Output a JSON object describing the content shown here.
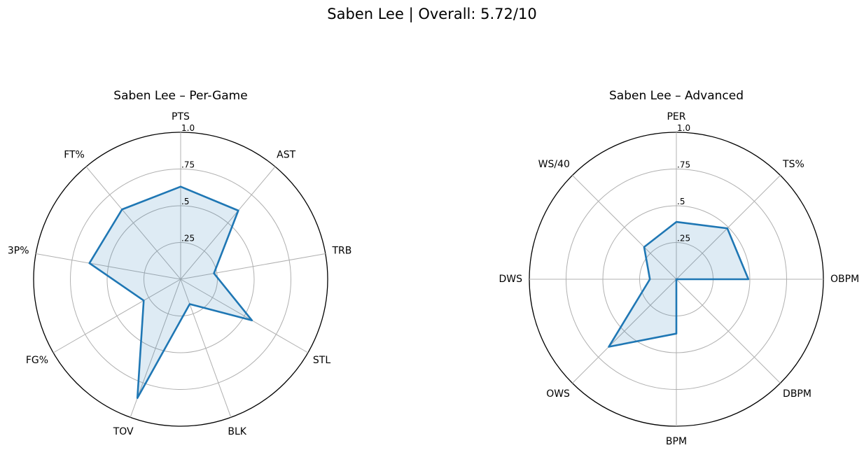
{
  "figure": {
    "suptitle": "Saben Lee | Overall: 5.72/10"
  },
  "colors": {
    "series_line": "#1f77b4",
    "series_fill": "#1f77b4",
    "grid": "#b0b0b0",
    "outer_ring": "#000000"
  },
  "chart_data": [
    {
      "type": "radar",
      "title": "Saben Lee – Per-Game",
      "categories": [
        "PTS",
        "AST",
        "TRB",
        "STL",
        "BLK",
        "TOV",
        "FG%",
        "3P%",
        "FT%"
      ],
      "values": [
        0.63,
        0.61,
        0.23,
        0.56,
        0.18,
        0.86,
        0.29,
        0.63,
        0.62
      ],
      "rlim": [
        0,
        1.0
      ],
      "rticks": [
        0.25,
        0.5,
        0.75,
        1.0
      ],
      "rtick_labels": [
        ".25",
        ".5",
        ".75",
        "1.0"
      ],
      "grid": true
    },
    {
      "type": "radar",
      "title": "Saben Lee – Advanced",
      "categories": [
        "PER",
        "TS%",
        "OBPM",
        "DBPM",
        "BPM",
        "OWS",
        "DWS",
        "WS/40"
      ],
      "values": [
        0.39,
        0.49,
        0.49,
        0.0,
        0.37,
        0.65,
        0.18,
        0.31
      ],
      "rlim": [
        0,
        1.0
      ],
      "rticks": [
        0.25,
        0.5,
        0.75,
        1.0
      ],
      "rtick_labels": [
        ".25",
        ".5",
        ".75",
        "1.0"
      ],
      "grid": true
    }
  ]
}
